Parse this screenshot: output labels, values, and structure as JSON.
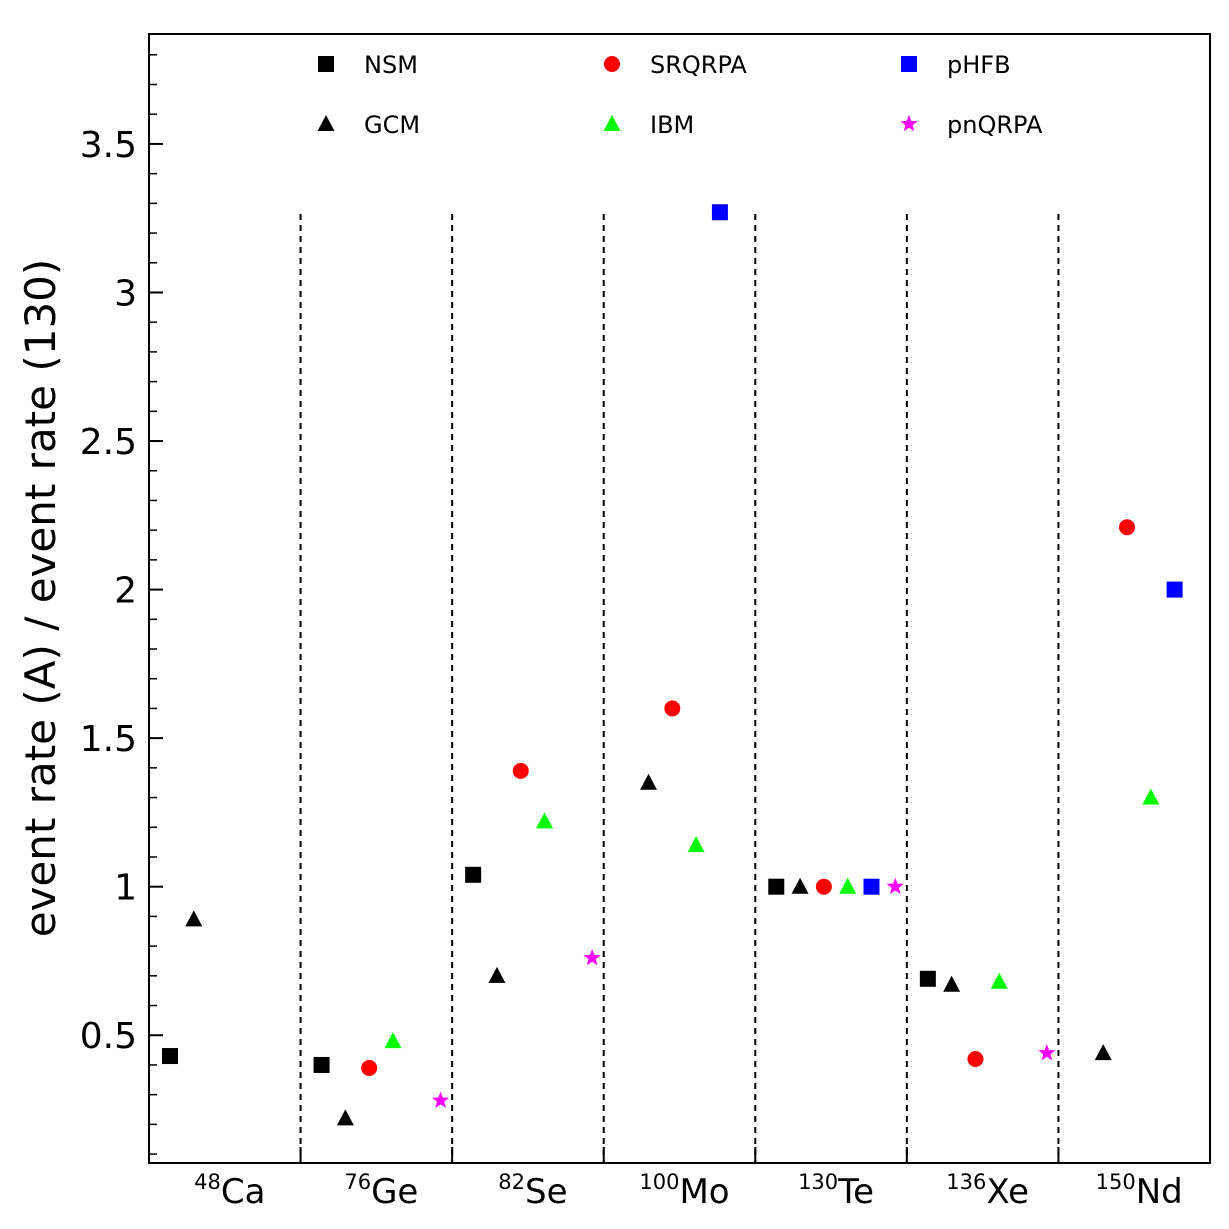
{
  "chart_data": {
    "type": "scatter",
    "title": "",
    "xlabel": "",
    "ylabel": "event rate (A) / event rate (130)",
    "ylim": [
      0.07,
      3.87
    ],
    "yticks": [
      "0.5",
      "1",
      "1.5",
      "2",
      "2.5",
      "3",
      "3.5"
    ],
    "grid": false,
    "legend_position": "top",
    "categories": [
      {
        "mass": "48",
        "element": "Ca"
      },
      {
        "mass": "76",
        "element": "Ge"
      },
      {
        "mass": "82",
        "element": "Se"
      },
      {
        "mass": "100",
        "element": "Mo"
      },
      {
        "mass": "130",
        "element": "Te"
      },
      {
        "mass": "136",
        "element": "Xe"
      },
      {
        "mass": "150",
        "element": "Nd"
      }
    ],
    "series": [
      {
        "name": "NSM",
        "marker": "square",
        "color": "#000000",
        "values": [
          0.43,
          0.4,
          1.04,
          null,
          1.0,
          0.69,
          null
        ]
      },
      {
        "name": "GCM",
        "marker": "triangle",
        "color": "#000000",
        "values": [
          0.89,
          0.22,
          0.7,
          1.35,
          1.0,
          0.67,
          0.44
        ]
      },
      {
        "name": "SRQRPA",
        "marker": "circle",
        "color": "#ff0000",
        "values": [
          null,
          0.39,
          1.39,
          1.6,
          1.0,
          0.42,
          2.21
        ]
      },
      {
        "name": "IBM",
        "marker": "triangle",
        "color": "#00ff00",
        "values": [
          null,
          0.48,
          1.22,
          1.14,
          1.0,
          0.68,
          1.3
        ]
      },
      {
        "name": "pHFB",
        "marker": "square",
        "color": "#0000ff",
        "values": [
          null,
          null,
          null,
          3.27,
          1.0,
          null,
          2.0
        ]
      },
      {
        "name": "pnQRPA",
        "marker": "star",
        "color": "#ff00ff",
        "values": [
          null,
          0.28,
          0.76,
          null,
          1.0,
          0.44,
          null
        ]
      }
    ]
  }
}
